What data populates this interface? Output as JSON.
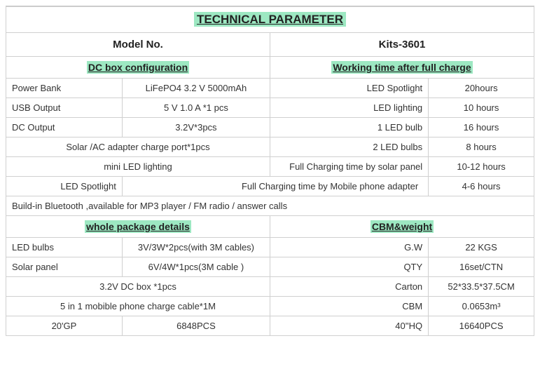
{
  "title": "TECHNICAL PARAMETER",
  "header": {
    "left": "Model No.",
    "right": "Kits-3601"
  },
  "sections": {
    "dc_box": "DC box configuration",
    "working_time": "Working time after full charge",
    "whole_pkg": "whole package details",
    "cbm": "CBM&weight"
  },
  "r1": {
    "a": "Power Bank",
    "b": "LiFePO4 3.2 V 5000mAh",
    "c": "LED Spotlight",
    "d": "20hours"
  },
  "r2": {
    "a": "USB Output",
    "b": "5 V 1.0 A *1 pcs",
    "c": "LED lighting",
    "d": "10 hours"
  },
  "r3": {
    "a": "DC Output",
    "b": "3.2V*3pcs",
    "c": "1 LED bulb",
    "d": "16 hours"
  },
  "r4": {
    "ab": "Solar /AC adapter charge port*1pcs",
    "c": "2 LED bulbs",
    "d": "8 hours"
  },
  "r5": {
    "ab": "mini LED lighting",
    "c": "Full Charging time by solar panel",
    "d": "10-12 hours"
  },
  "r6": {
    "a": "LED Spotlight",
    "bc": "Full Charging time by Mobile phone adapter",
    "d": "4-6 hours"
  },
  "r7": {
    "abcd": "Build-in Bluetooth ,available for MP3 player / FM radio / answer calls"
  },
  "r8": {
    "a": "LED bulbs",
    "b": "3V/3W*2pcs(with 3M cables)",
    "c": "G.W",
    "d": "22 KGS"
  },
  "r9": {
    "a": "Solar panel",
    "b": "6V/4W*1pcs(3M cable )",
    "c": "QTY",
    "d": "16set/CTN"
  },
  "r10": {
    "ab": "3.2V DC box *1pcs",
    "c": "Carton",
    "d": "52*33.5*37.5CM"
  },
  "r11": {
    "ab": "5 in 1 mobible phone charge cable*1M",
    "c": "CBM",
    "d": "0.0653m³"
  },
  "r12": {
    "a": "20'GP",
    "b": "6848PCS",
    "c": "40''HQ",
    "d": "16640PCS"
  }
}
